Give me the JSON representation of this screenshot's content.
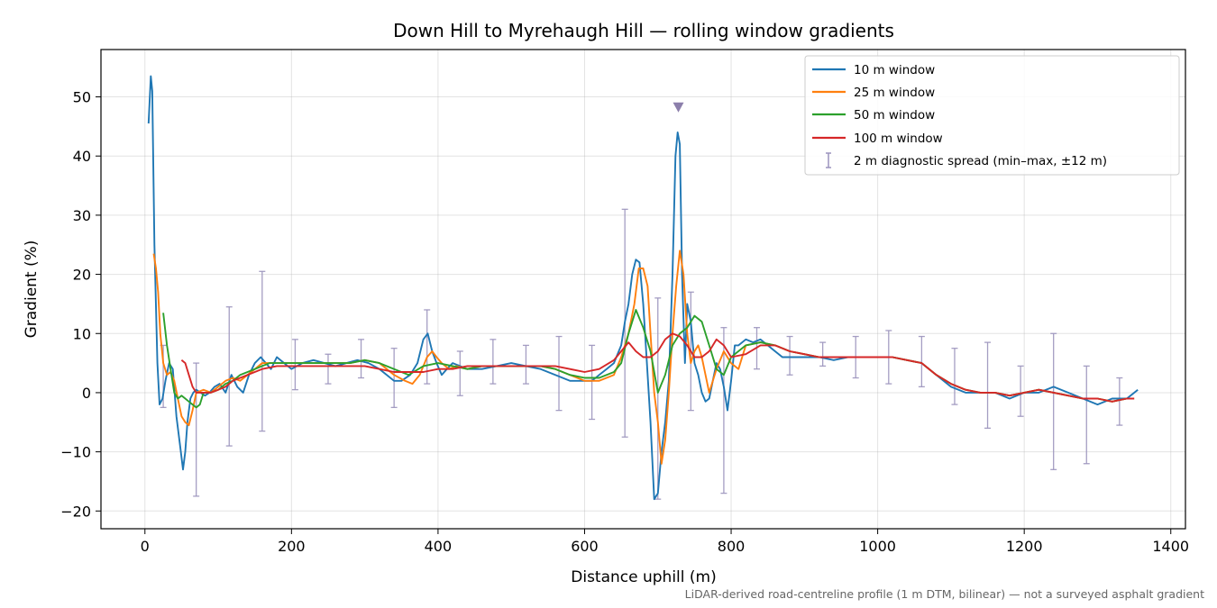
{
  "chart_data": {
    "type": "line",
    "title": "Down Hill to Myrehaugh Hill — rolling window gradients",
    "xlabel": "Distance uphill (m)",
    "ylabel": "Gradient (%)",
    "xlim": [
      -60,
      1420
    ],
    "ylim": [
      -23,
      58
    ],
    "xticks": [
      0,
      200,
      400,
      600,
      800,
      1000,
      1200,
      1400
    ],
    "yticks": [
      -20,
      -10,
      0,
      10,
      20,
      30,
      40,
      50
    ],
    "xtick_labels": [
      "0",
      "200",
      "400",
      "600",
      "800",
      "1000",
      "1200",
      "1400"
    ],
    "ytick_labels": [
      "−20",
      "−10",
      "0",
      "10",
      "20",
      "30",
      "40",
      "50"
    ],
    "grid": true,
    "legend_position": "top-right",
    "footnote": "LiDAR-derived road-centreline profile (1 m DTM, bilinear) — not a surveyed asphalt gradient",
    "marker": {
      "x": 728,
      "y": 48.3,
      "symbol": "triangle-down",
      "color": "#8c7fab"
    },
    "series": [
      {
        "name": "10 m window",
        "color": "#1f77b4",
        "x": [
          5,
          8,
          10,
          13,
          17,
          20,
          24,
          28,
          33,
          38,
          43,
          48,
          52,
          55,
          58,
          62,
          66,
          70,
          76,
          82,
          88,
          95,
          102,
          110,
          118,
          126,
          134,
          142,
          150,
          158,
          165,
          172,
          180,
          190,
          200,
          215,
          230,
          245,
          260,
          275,
          290,
          305,
          320,
          330,
          340,
          350,
          362,
          372,
          380,
          386,
          392,
          398,
          405,
          412,
          420,
          430,
          440,
          460,
          480,
          500,
          520,
          540,
          560,
          580,
          600,
          610,
          620,
          630,
          640,
          650,
          655,
          660,
          665,
          670,
          675,
          680,
          685,
          690,
          695,
          700,
          705,
          710,
          715,
          720,
          724,
          727,
          730,
          733,
          737,
          740,
          745,
          750,
          755,
          760,
          765,
          770,
          775,
          780,
          785,
          790,
          795,
          800,
          805,
          810,
          820,
          830,
          840,
          850,
          860,
          870,
          880,
          900,
          920,
          940,
          960,
          980,
          1000,
          1020,
          1040,
          1060,
          1080,
          1100,
          1120,
          1140,
          1160,
          1180,
          1200,
          1220,
          1240,
          1260,
          1280,
          1300,
          1320,
          1340,
          1355
        ],
        "y": [
          45.5,
          53.5,
          51,
          25,
          5,
          -2,
          -1,
          2,
          5,
          4,
          -4,
          -9,
          -13,
          -10,
          -5,
          -1,
          0,
          0.5,
          0,
          -0.5,
          0,
          1,
          1.5,
          0,
          3,
          1,
          0,
          3,
          5,
          6,
          5,
          4,
          6,
          5,
          4,
          5,
          5.5,
          5,
          4.5,
          5,
          5.5,
          5,
          4,
          3,
          2,
          2,
          3,
          5,
          9,
          10,
          7,
          5,
          3,
          4,
          5,
          4.5,
          4,
          4,
          4.5,
          5,
          4.5,
          4,
          3,
          2,
          2,
          2,
          3,
          4,
          5,
          8,
          12,
          15,
          20,
          22.5,
          22,
          15,
          5,
          -5,
          -18,
          -17,
          -10,
          -5,
          2,
          20,
          40,
          44,
          42,
          20,
          5,
          15,
          12,
          5,
          3,
          0,
          -1.5,
          -1,
          2,
          5,
          4,
          1,
          -3,
          2,
          8,
          8,
          9,
          8.5,
          9,
          8,
          7,
          6,
          6,
          6,
          6,
          5.5,
          6,
          6,
          6,
          6,
          5.5,
          5,
          3,
          1,
          0,
          0,
          0,
          -1,
          0,
          0,
          1,
          0,
          -1,
          -2,
          -1,
          -1,
          0.5
        ]
      },
      {
        "name": "25 m window",
        "color": "#ff7f0e",
        "x": [
          12,
          15,
          18,
          21,
          25,
          30,
          35,
          40,
          45,
          50,
          55,
          60,
          65,
          70,
          80,
          90,
          100,
          110,
          120,
          130,
          140,
          150,
          160,
          170,
          180,
          200,
          220,
          240,
          260,
          280,
          300,
          320,
          340,
          355,
          365,
          375,
          385,
          392,
          398,
          405,
          415,
          425,
          440,
          460,
          480,
          500,
          520,
          540,
          560,
          580,
          600,
          620,
          640,
          650,
          660,
          668,
          674,
          680,
          686,
          690,
          695,
          700,
          705,
          710,
          715,
          720,
          725,
          730,
          735,
          740,
          745,
          750,
          755,
          760,
          765,
          770,
          780,
          790,
          800,
          810,
          820,
          840,
          860,
          880,
          900,
          920,
          940,
          960,
          980,
          1000,
          1020,
          1040,
          1060,
          1080,
          1100,
          1120,
          1140,
          1160,
          1180,
          1200,
          1220,
          1240,
          1260,
          1280,
          1300,
          1320,
          1340,
          1350
        ],
        "y": [
          23.5,
          21,
          17,
          10,
          5,
          3,
          3.5,
          2,
          -1,
          -4,
          -5,
          -5.5,
          -3,
          0,
          0.5,
          0,
          1,
          2,
          2.5,
          2,
          3,
          4,
          5,
          5,
          5,
          5,
          5,
          5,
          5,
          5,
          5.5,
          5,
          3,
          2,
          1.5,
          3,
          6,
          7,
          6,
          5,
          4,
          4.5,
          4,
          4.5,
          4.5,
          4.5,
          4.5,
          4.5,
          4,
          3,
          2,
          2,
          3,
          6,
          10,
          15,
          21,
          21,
          18,
          10,
          0,
          -5,
          -12,
          -8,
          0,
          10,
          18,
          24,
          20,
          10,
          5,
          7,
          8,
          6,
          3,
          0,
          4,
          7,
          5,
          4,
          8,
          8.5,
          8,
          7,
          6.5,
          6,
          6,
          6,
          6,
          6,
          6,
          5.5,
          5,
          3,
          1.5,
          0.5,
          0,
          0,
          -0.5,
          0,
          0.5,
          0,
          -0.5,
          -1,
          -1,
          -1.5,
          -1,
          -1
        ]
      },
      {
        "name": "50 m window",
        "color": "#2ca02c",
        "x": [
          25,
          30,
          35,
          40,
          45,
          50,
          55,
          60,
          65,
          70,
          75,
          80,
          90,
          100,
          110,
          120,
          130,
          140,
          150,
          160,
          170,
          180,
          200,
          220,
          240,
          260,
          280,
          300,
          320,
          340,
          360,
          380,
          400,
          420,
          440,
          460,
          480,
          500,
          520,
          540,
          560,
          580,
          600,
          620,
          640,
          650,
          660,
          670,
          680,
          690,
          700,
          710,
          720,
          730,
          740,
          750,
          760,
          770,
          780,
          790,
          800,
          820,
          840,
          860,
          880,
          900,
          920,
          940,
          960,
          980,
          1000,
          1020,
          1040,
          1060,
          1080,
          1100,
          1120,
          1140,
          1160,
          1180,
          1200,
          1220,
          1240,
          1260,
          1280,
          1300,
          1320,
          1340,
          1350
        ],
        "y": [
          13.5,
          8,
          4,
          0,
          -1,
          -0.5,
          -1,
          -1.5,
          -2,
          -2.5,
          -2,
          0,
          0,
          0.5,
          1.5,
          2,
          3,
          3.5,
          4,
          4.5,
          5,
          5,
          5,
          5,
          5,
          5,
          5,
          5.5,
          5,
          4,
          3,
          4.5,
          5,
          4.5,
          4,
          4.5,
          4.5,
          4.5,
          4.5,
          4.5,
          4,
          3,
          2.5,
          2.5,
          3.5,
          5,
          10,
          14,
          11,
          7,
          0,
          3,
          8,
          10,
          11,
          13,
          12,
          8,
          4,
          3,
          6,
          8,
          8.5,
          8,
          7,
          6.5,
          6,
          6,
          6,
          6,
          6,
          6,
          5.5,
          5,
          3,
          1.5,
          0.5,
          0,
          0,
          -0.5,
          0,
          0.5,
          0,
          -0.5,
          -1,
          -1,
          -1.5,
          -1,
          -1
        ]
      },
      {
        "name": "100 m window",
        "color": "#d62728",
        "x": [
          50,
          55,
          60,
          65,
          70,
          80,
          90,
          100,
          110,
          120,
          140,
          160,
          180,
          200,
          220,
          240,
          260,
          280,
          300,
          320,
          340,
          360,
          380,
          400,
          420,
          440,
          460,
          480,
          500,
          520,
          540,
          560,
          580,
          600,
          620,
          640,
          650,
          660,
          670,
          680,
          690,
          700,
          710,
          720,
          730,
          740,
          750,
          760,
          770,
          780,
          790,
          800,
          820,
          840,
          860,
          880,
          900,
          920,
          940,
          960,
          980,
          1000,
          1020,
          1040,
          1060,
          1080,
          1100,
          1120,
          1140,
          1160,
          1180,
          1200,
          1220,
          1240,
          1260,
          1280,
          1300,
          1320,
          1340,
          1350
        ],
        "y": [
          5.5,
          5,
          3,
          1,
          0,
          0,
          0,
          0.5,
          1,
          2,
          3,
          4,
          4.5,
          4.5,
          4.5,
          4.5,
          4.5,
          4.5,
          4.5,
          4,
          3.5,
          3.5,
          3.5,
          4,
          4,
          4.5,
          4.5,
          4.5,
          4.5,
          4.5,
          4.5,
          4.5,
          4,
          3.5,
          4,
          5.5,
          7,
          8.5,
          7,
          6,
          6,
          7,
          9,
          10,
          9.5,
          8,
          6,
          6,
          7,
          9,
          8,
          6,
          6.5,
          8,
          8,
          7,
          6.5,
          6,
          6,
          6,
          6,
          6,
          6,
          5.5,
          5,
          3,
          1.5,
          0.5,
          0,
          0,
          -0.5,
          0,
          0.5,
          0,
          -0.5,
          -1,
          -1,
          -1.5,
          -1,
          -1
        ]
      }
    ],
    "errorbars": {
      "name": "2 m diagnostic spread (min–max, ±12 m)",
      "color": "#9b93bd",
      "points": [
        {
          "x": 25,
          "lo": -2.5,
          "hi": 8
        },
        {
          "x": 70,
          "lo": -17.5,
          "hi": 5
        },
        {
          "x": 115,
          "lo": -9,
          "hi": 14.5
        },
        {
          "x": 160,
          "lo": -6.5,
          "hi": 20.5
        },
        {
          "x": 205,
          "lo": 0.5,
          "hi": 9
        },
        {
          "x": 250,
          "lo": 1.5,
          "hi": 6.5
        },
        {
          "x": 295,
          "lo": 2.5,
          "hi": 9
        },
        {
          "x": 340,
          "lo": -2.5,
          "hi": 7.5
        },
        {
          "x": 385,
          "lo": 1.5,
          "hi": 14
        },
        {
          "x": 430,
          "lo": -0.5,
          "hi": 7
        },
        {
          "x": 475,
          "lo": 1.5,
          "hi": 9
        },
        {
          "x": 520,
          "lo": 1.5,
          "hi": 8
        },
        {
          "x": 565,
          "lo": -3,
          "hi": 9.5
        },
        {
          "x": 610,
          "lo": -4.5,
          "hi": 8
        },
        {
          "x": 655,
          "lo": -7.5,
          "hi": 31
        },
        {
          "x": 700,
          "lo": -18,
          "hi": 16
        },
        {
          "x": 745,
          "lo": -3,
          "hi": 17
        },
        {
          "x": 790,
          "lo": -17,
          "hi": 11
        },
        {
          "x": 835,
          "lo": 4,
          "hi": 11
        },
        {
          "x": 880,
          "lo": 3,
          "hi": 9.5
        },
        {
          "x": 925,
          "lo": 4.5,
          "hi": 8.5
        },
        {
          "x": 970,
          "lo": 2.5,
          "hi": 9.5
        },
        {
          "x": 1015,
          "lo": 1.5,
          "hi": 10.5
        },
        {
          "x": 1060,
          "lo": 1,
          "hi": 9.5
        },
        {
          "x": 1105,
          "lo": -2,
          "hi": 7.5
        },
        {
          "x": 1150,
          "lo": -6,
          "hi": 8.5
        },
        {
          "x": 1195,
          "lo": -4,
          "hi": 4.5
        },
        {
          "x": 1240,
          "lo": -13,
          "hi": 10
        },
        {
          "x": 1285,
          "lo": -12,
          "hi": 4.5
        },
        {
          "x": 1330,
          "lo": -5.5,
          "hi": 2.5
        }
      ]
    }
  }
}
